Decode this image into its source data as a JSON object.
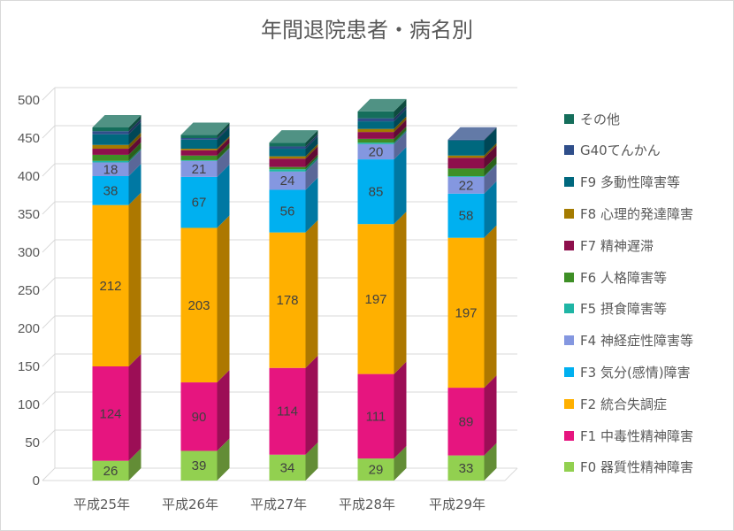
{
  "chart_data": {
    "type": "bar",
    "stacked": true,
    "three_d": true,
    "title": "年間退院患者・病名別",
    "categories": [
      "平成25年",
      "平成26年",
      "平成27年",
      "平成28年",
      "平成29年"
    ],
    "ylim": [
      0,
      500
    ],
    "yticks": [
      "0",
      "50",
      "100",
      "150",
      "200",
      "250",
      "300",
      "350",
      "400",
      "450",
      "500"
    ],
    "grid": true,
    "legend_position": "right",
    "series": [
      {
        "name": "F0 器質性精神障害",
        "color": "#92d050",
        "values": [
          26,
          39,
          34,
          29,
          33
        ],
        "labels": [
          "26",
          "39",
          "34",
          "29",
          "33"
        ]
      },
      {
        "name": "F1 中毒性精神障害",
        "color": "#e6157f",
        "values": [
          124,
          90,
          114,
          111,
          89
        ],
        "labels": [
          "124",
          "90",
          "114",
          "111",
          "89"
        ]
      },
      {
        "name": "F2 統合失調症",
        "color": "#ffb000",
        "values": [
          212,
          203,
          178,
          197,
          197
        ],
        "labels": [
          "212",
          "203",
          "178",
          "197",
          "197"
        ]
      },
      {
        "name": "F3 気分(感情)障害",
        "color": "#00b0f0",
        "values": [
          38,
          67,
          56,
          85,
          58
        ],
        "labels": [
          "38",
          "67",
          "56",
          "85",
          "58"
        ]
      },
      {
        "name": "F4 神経症性障害等",
        "color": "#8497e0",
        "values": [
          18,
          21,
          24,
          20,
          22
        ],
        "labels": [
          "18",
          "21",
          "24",
          "20",
          "22"
        ]
      },
      {
        "name": "F5 摂食障害等",
        "color": "#1fb5a5",
        "values": [
          2,
          1,
          3,
          2,
          1
        ],
        "labels": [
          "",
          "",
          "",
          "",
          ""
        ]
      },
      {
        "name": "F6 人格障害等",
        "color": "#3e8f26",
        "values": [
          8,
          6,
          3,
          5,
          10
        ],
        "labels": [
          "",
          "",
          "",
          "",
          ""
        ]
      },
      {
        "name": "F7 精神遅滞",
        "color": "#8e0f4c",
        "values": [
          8,
          7,
          11,
          9,
          14
        ],
        "labels": [
          "",
          "",
          "",
          "",
          ""
        ]
      },
      {
        "name": "F8 心理的発達障害",
        "color": "#a47b00",
        "values": [
          5,
          2,
          3,
          4,
          3
        ],
        "labels": [
          "",
          "",
          "",
          "",
          ""
        ]
      },
      {
        "name": "F9 多動性障害等",
        "color": "#00687e",
        "values": [
          14,
          12,
          10,
          10,
          20
        ],
        "labels": [
          "",
          "",
          "",
          "",
          ""
        ]
      },
      {
        "name": "G40てんかん",
        "color": "#2f4e8a",
        "values": [
          4,
          2,
          3,
          4,
          1
        ],
        "labels": [
          "",
          "",
          "",
          "",
          ""
        ]
      },
      {
        "name": "その他",
        "color": "#156e5b",
        "values": [
          5,
          4,
          5,
          9,
          0
        ],
        "labels": [
          "",
          "",
          "",
          "",
          ""
        ]
      }
    ]
  }
}
